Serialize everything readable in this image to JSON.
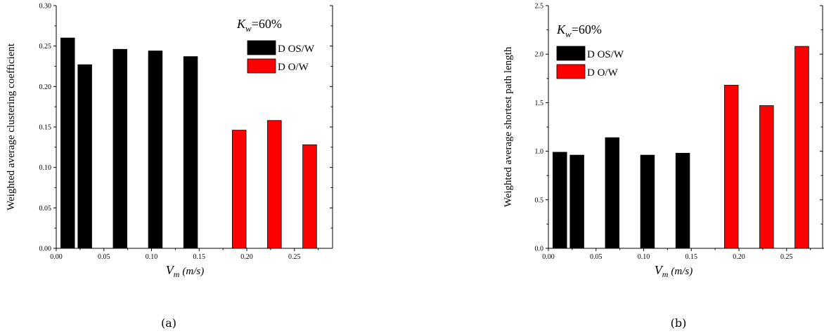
{
  "chart_data": [
    {
      "type": "bar",
      "label": "(a)",
      "ylabel": "Weighted average clustering coefficient",
      "xlabel_var": "V",
      "xlabel_sub": "m",
      "xlabel_unit": "(m/s)",
      "annotation_k": "K",
      "annotation_sub": "w",
      "annotation_val": "=60%",
      "xlim": [
        0,
        0.29
      ],
      "ylim": [
        0,
        0.3
      ],
      "xticks": [
        "0.00",
        "0.05",
        "0.10",
        "0.15",
        "0.20",
        "0.25"
      ],
      "yticks": [
        "0.00",
        "0.05",
        "0.10",
        "0.15",
        "0.20",
        "0.25",
        "0.30"
      ],
      "bar_width": 0.0145,
      "legend_position": "top-right",
      "series": [
        {
          "name": "D OS/W",
          "color": "#000000",
          "x": [
            0.012,
            0.03,
            0.067,
            0.104,
            0.141
          ],
          "values": [
            0.26,
            0.227,
            0.246,
            0.244,
            0.237
          ]
        },
        {
          "name": "D O/W",
          "color": "#ff0000",
          "x": [
            0.192,
            0.229,
            0.266
          ],
          "values": [
            0.146,
            0.158,
            0.128
          ]
        }
      ]
    },
    {
      "type": "bar",
      "label": "(b)",
      "ylabel": "Weighted average shortest path length",
      "xlabel_var": "V",
      "xlabel_sub": "m",
      "xlabel_unit": "(m/s)",
      "annotation_k": "K",
      "annotation_sub": "w",
      "annotation_val": "=60%",
      "xlim": [
        0,
        0.29
      ],
      "ylim": [
        0,
        2.5
      ],
      "xticks": [
        "0.00",
        "0.05",
        "0.10",
        "0.15",
        "0.20",
        "0.25"
      ],
      "yticks": [
        "0.0",
        "0.5",
        "1.0",
        "1.5",
        "2.0",
        "2.5"
      ],
      "bar_width": 0.0145,
      "legend_position": "top-left",
      "series": [
        {
          "name": "D OS/W",
          "color": "#000000",
          "x": [
            0.012,
            0.03,
            0.067,
            0.104,
            0.141
          ],
          "values": [
            0.99,
            0.96,
            1.14,
            0.96,
            0.98
          ]
        },
        {
          "name": "D O/W",
          "color": "#ff0000",
          "x": [
            0.192,
            0.229,
            0.266
          ],
          "values": [
            1.68,
            1.47,
            2.08
          ]
        }
      ]
    }
  ]
}
